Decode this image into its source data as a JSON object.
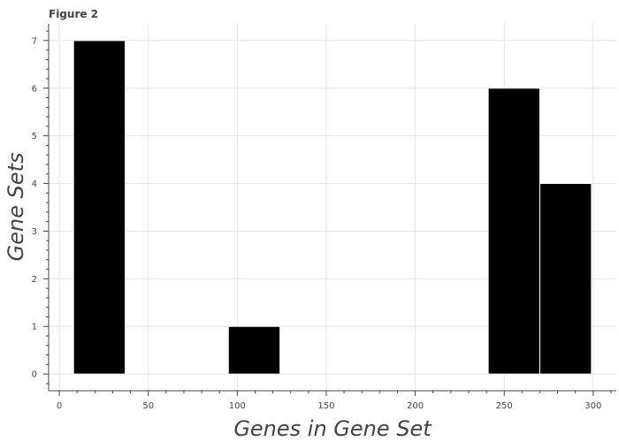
{
  "chart_data": {
    "type": "bar",
    "title": "Figure 2",
    "xlabel": "Genes in Gene Set",
    "ylabel": "Gene Sets",
    "xlim": [
      -6,
      313
    ],
    "ylim": [
      -0.35,
      7.35
    ],
    "x_ticks": [
      0,
      50,
      100,
      150,
      200,
      250,
      300
    ],
    "y_ticks": [
      0,
      1,
      2,
      3,
      4,
      5,
      6,
      7
    ],
    "grid": true,
    "legend": "none",
    "bar_color": "#000000",
    "bins": [
      {
        "x_start": 8,
        "x_end": 37,
        "value": 7
      },
      {
        "x_start": 95,
        "x_end": 124,
        "value": 1
      },
      {
        "x_start": 241,
        "x_end": 270,
        "value": 6
      },
      {
        "x_start": 270,
        "x_end": 299,
        "value": 4
      }
    ]
  }
}
